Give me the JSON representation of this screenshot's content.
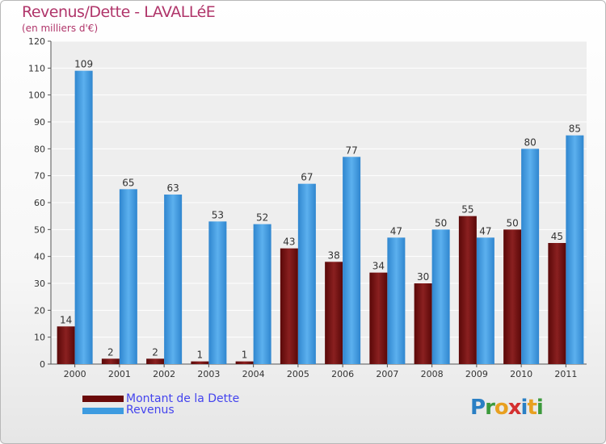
{
  "header": {
    "title": "Revenus/Dette - LAVALLéE",
    "subtitle": "(en milliers d'€)"
  },
  "legend": {
    "items": [
      {
        "label": "Montant de la Dette",
        "color": "#6b0a0a"
      },
      {
        "label": "Revenus",
        "color": "#3d9be0"
      }
    ]
  },
  "logo": {
    "text": "Proxiti",
    "letters": [
      "P",
      "r",
      "o",
      "x",
      "i",
      "t",
      "i"
    ],
    "colors": [
      "#2a7fc4",
      "#3c9a3c",
      "#e8a020",
      "#d43030",
      "#2a7fc4",
      "#e8a020",
      "#3c9a3c"
    ]
  },
  "chart_data": {
    "type": "bar",
    "title": "Revenus/Dette - LAVALLéE",
    "subtitle": "(en milliers d'€)",
    "xlabel": "",
    "ylabel": "",
    "categories": [
      "2000",
      "2001",
      "2002",
      "2003",
      "2004",
      "2005",
      "2006",
      "2007",
      "2008",
      "2009",
      "2010",
      "2011"
    ],
    "series": [
      {
        "name": "Montant de la Dette",
        "color": "#6b0a0a",
        "values": [
          14,
          2,
          2,
          1,
          1,
          43,
          38,
          34,
          30,
          55,
          50,
          45
        ]
      },
      {
        "name": "Revenus",
        "color": "#3d9be0",
        "values": [
          109,
          65,
          63,
          53,
          52,
          67,
          77,
          47,
          50,
          47,
          80,
          85
        ]
      }
    ],
    "ylim": [
      0,
      120
    ],
    "yticks": [
      0,
      10,
      20,
      30,
      40,
      50,
      60,
      70,
      80,
      90,
      100,
      110,
      120
    ],
    "grid": true,
    "legend_position": "bottom-left"
  }
}
